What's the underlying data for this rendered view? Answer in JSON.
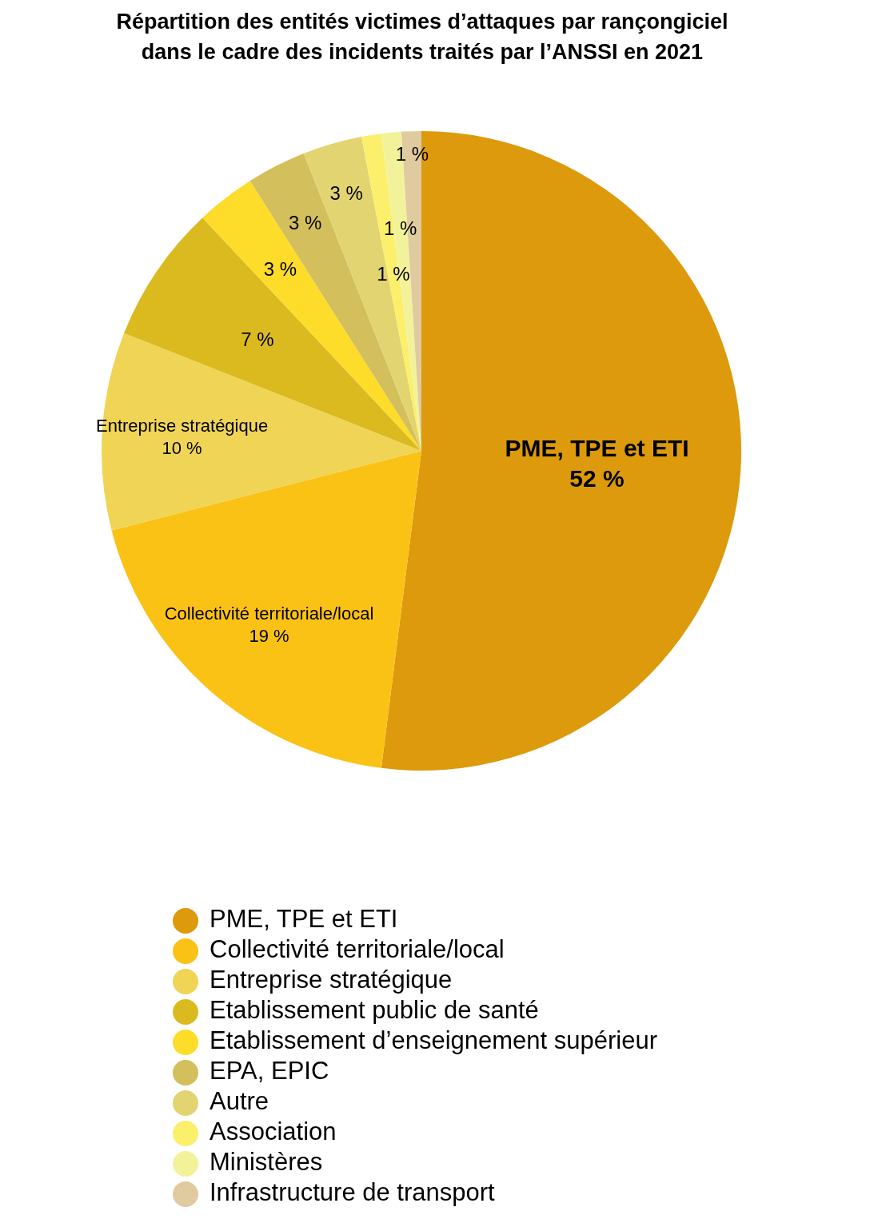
{
  "chart_data": {
    "type": "pie",
    "title": "Répartition des entités victimes d’attaques par rançongiciel dans le cadre des incidents traités par l’ANSSI en 2021",
    "categories": [
      "PME, TPE et ETI",
      "Collectivité territoriale/local",
      "Entreprise stratégique",
      "Etablissement public de santé",
      "Etablissement d’enseignement supérieur",
      "EPA, EPIC",
      "Autre",
      "Association",
      "Ministères",
      "Infrastructure de transport"
    ],
    "values": [
      52,
      19,
      10,
      7,
      3,
      3,
      3,
      1,
      1,
      1
    ],
    "colors": [
      "#dc9a0c",
      "#fbc216",
      "#f0d456",
      "#dbba1f",
      "#fddc2a",
      "#d3bf5b",
      "#e2d470",
      "#fcef6c",
      "#f2f29b",
      "#e0cba0"
    ],
    "value_labels": [
      "PME, TPE et ETI\n52 %",
      "Collectivité territoriale/local\n19 %",
      "Entreprise stratégique\n10 %",
      "7 %",
      "3 %",
      "3 %",
      "3 %",
      "1 %",
      "1 %",
      "1 %"
    ],
    "legend": "bottom"
  }
}
